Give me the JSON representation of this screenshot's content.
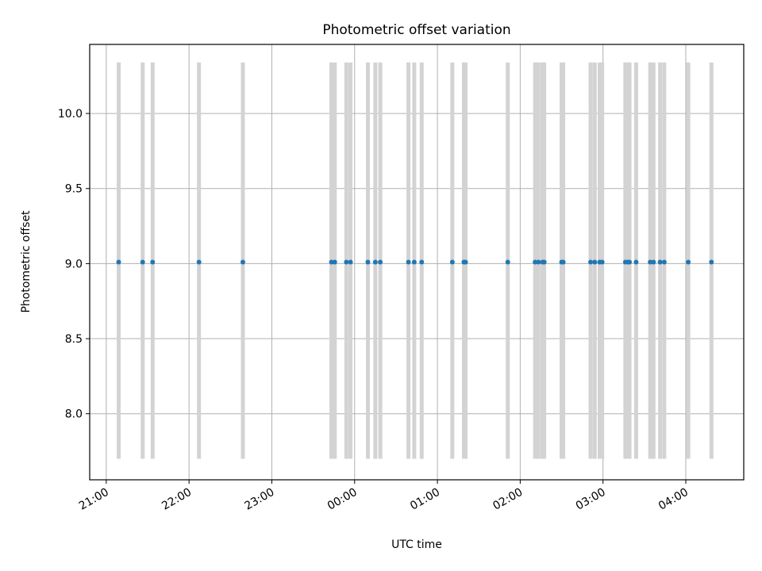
{
  "chart_data": {
    "type": "scatter",
    "title": "Photometric offset variation",
    "xlabel": "UTC time",
    "ylabel": "Photometric offset",
    "x_unit": "hours since 21:00 UTC",
    "xlim": [
      -0.2,
      7.7
    ],
    "ylim": [
      7.56,
      10.46
    ],
    "grid": true,
    "x_ticks": [
      {
        "value": 0,
        "label": "21:00"
      },
      {
        "value": 1,
        "label": "22:00"
      },
      {
        "value": 2,
        "label": "23:00"
      },
      {
        "value": 3,
        "label": "00:00"
      },
      {
        "value": 4,
        "label": "01:00"
      },
      {
        "value": 5,
        "label": "02:00"
      },
      {
        "value": 6,
        "label": "03:00"
      },
      {
        "value": 7,
        "label": "04:00"
      }
    ],
    "y_ticks": [
      {
        "value": 8.0,
        "label": "8.0"
      },
      {
        "value": 8.5,
        "label": "8.5"
      },
      {
        "value": 9.0,
        "label": "9.0"
      },
      {
        "value": 9.5,
        "label": "9.5"
      },
      {
        "value": 10.0,
        "label": "10.0"
      }
    ],
    "band_range": [
      7.7,
      10.34
    ],
    "series": [
      {
        "name": "offset",
        "color": "#1f77b4",
        "band_color": "#d3d3d3",
        "y_value": 9.01,
        "x": [
          0.15,
          0.44,
          0.56,
          1.12,
          1.65,
          2.72,
          2.76,
          2.9,
          2.95,
          3.16,
          3.25,
          3.31,
          3.65,
          3.72,
          3.81,
          4.18,
          4.32,
          4.34,
          4.85,
          5.18,
          5.22,
          5.27,
          5.29,
          5.5,
          5.52,
          5.85,
          5.9,
          5.96,
          5.99,
          6.27,
          6.3,
          6.32,
          6.4,
          6.57,
          6.61,
          6.69,
          6.74,
          7.03,
          7.31
        ]
      }
    ]
  }
}
